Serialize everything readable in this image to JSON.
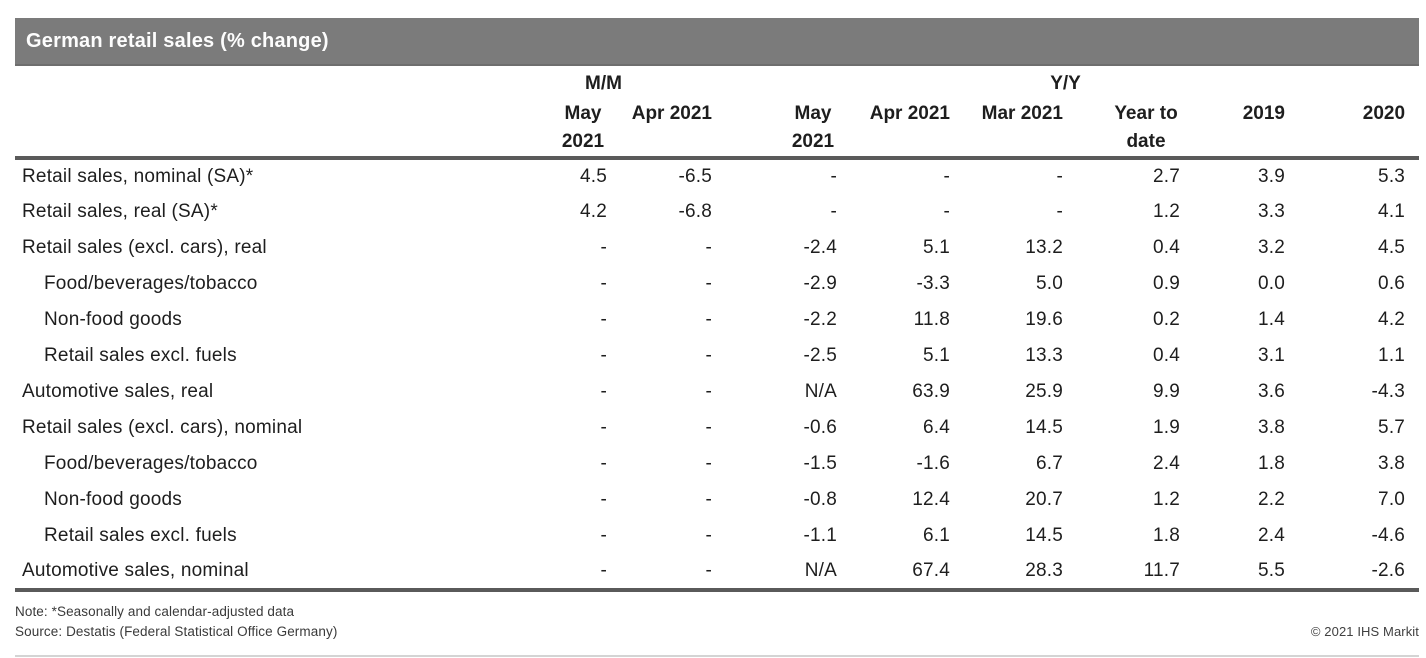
{
  "title": "German retail sales (% change)",
  "colors": {
    "title_bar_bg": "#7b7b7b",
    "title_text": "#fdfdfd",
    "rule": "#5a5a5a",
    "body_text": "#1e1e1e"
  },
  "table": {
    "group_headers": [
      {
        "label": "M/M",
        "span": 2
      },
      {
        "label": "Y/Y",
        "span": 6
      }
    ],
    "columns": [
      "May 2021",
      "Apr 2021",
      "May 2021",
      "Apr 2021",
      "Mar 2021",
      "Year to date",
      "2019",
      "2020"
    ],
    "rows": [
      {
        "label": "Retail sales, nominal (SA)*",
        "indent": false,
        "values": [
          "4.5",
          "-6.5",
          "-",
          "-",
          "-",
          "2.7",
          "3.9",
          "5.3"
        ]
      },
      {
        "label": "Retail sales, real (SA)*",
        "indent": false,
        "values": [
          "4.2",
          "-6.8",
          "-",
          "-",
          "-",
          "1.2",
          "3.3",
          "4.1"
        ]
      },
      {
        "label": "Retail sales (excl. cars), real",
        "indent": false,
        "values": [
          "-",
          "-",
          "-2.4",
          "5.1",
          "13.2",
          "0.4",
          "3.2",
          "4.5"
        ]
      },
      {
        "label": "Food/beverages/tobacco",
        "indent": true,
        "values": [
          "-",
          "-",
          "-2.9",
          "-3.3",
          "5.0",
          "0.9",
          "0.0",
          "0.6"
        ]
      },
      {
        "label": "Non-food goods",
        "indent": true,
        "values": [
          "-",
          "-",
          "-2.2",
          "11.8",
          "19.6",
          "0.2",
          "1.4",
          "4.2"
        ]
      },
      {
        "label": "Retail sales excl. fuels",
        "indent": true,
        "values": [
          "-",
          "-",
          "-2.5",
          "5.1",
          "13.3",
          "0.4",
          "3.1",
          "1.1"
        ]
      },
      {
        "label": "Automotive sales, real",
        "indent": false,
        "values": [
          "-",
          "-",
          "N/A",
          "63.9",
          "25.9",
          "9.9",
          "3.6",
          "-4.3"
        ]
      },
      {
        "label": "Retail sales (excl. cars), nominal",
        "indent": false,
        "values": [
          "-",
          "-",
          "-0.6",
          "6.4",
          "14.5",
          "1.9",
          "3.8",
          "5.7"
        ]
      },
      {
        "label": "Food/beverages/tobacco",
        "indent": true,
        "values": [
          "-",
          "-",
          "-1.5",
          "-1.6",
          "6.7",
          "2.4",
          "1.8",
          "3.8"
        ]
      },
      {
        "label": "Non-food goods",
        "indent": true,
        "values": [
          "-",
          "-",
          "-0.8",
          "12.4",
          "20.7",
          "1.2",
          "2.2",
          "7.0"
        ]
      },
      {
        "label": "Retail sales excl. fuels",
        "indent": true,
        "values": [
          "-",
          "-",
          "-1.1",
          "6.1",
          "14.5",
          "1.8",
          "2.4",
          "-4.6"
        ]
      },
      {
        "label": "Automotive sales, nominal",
        "indent": false,
        "values": [
          "-",
          "-",
          "N/A",
          "67.4",
          "28.3",
          "11.7",
          "5.5",
          "-2.6"
        ]
      }
    ]
  },
  "footer": {
    "note": "Note: *Seasonally and calendar-adjusted data",
    "source": "Source: Destatis (Federal Statistical Office Germany)",
    "copyright": "© 2021 IHS Markit"
  }
}
